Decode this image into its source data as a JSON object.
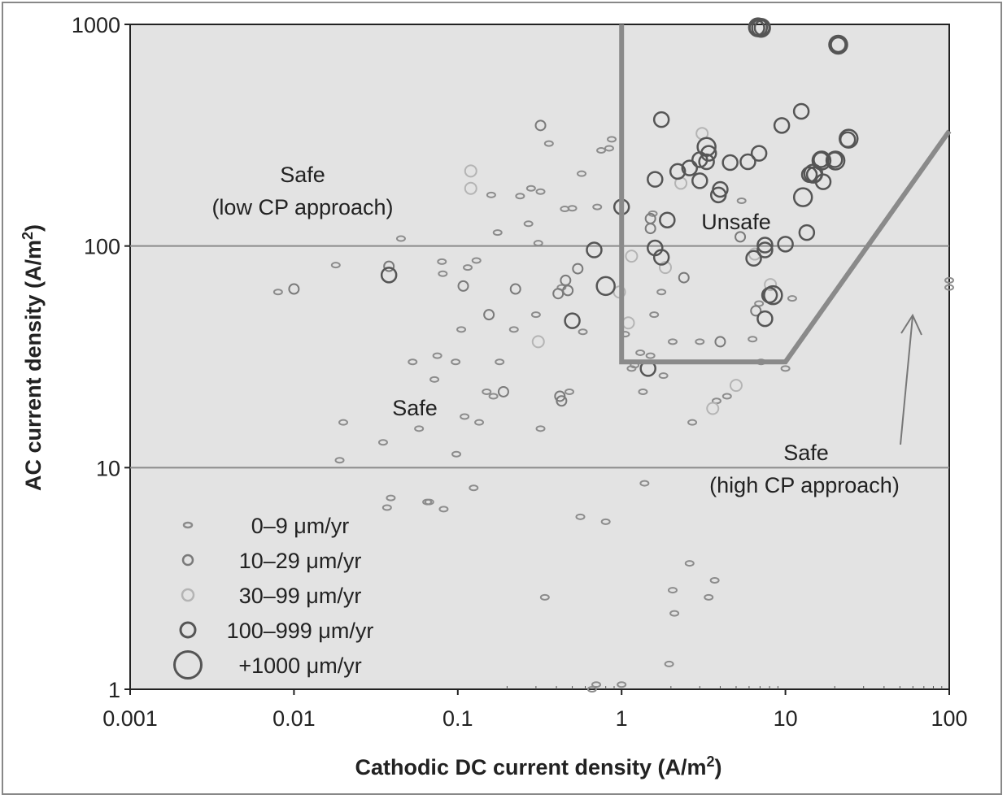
{
  "chart_data": {
    "type": "scatter",
    "xlabel": "Cathodic DC current density (A/m",
    "xlabel_sup": "2",
    "xlabel_end": ")",
    "ylabel": "AC current density (A/m",
    "ylabel_sup": "2",
    "ylabel_end": ")",
    "x_scale": "log",
    "y_scale": "log",
    "xlim": [
      0.001,
      100
    ],
    "ylim": [
      1,
      1000
    ],
    "x_ticks": [
      "0.001",
      "0.01",
      "0.1",
      "1",
      "10",
      "100"
    ],
    "y_ticks": [
      "1",
      "10",
      "100",
      "1000"
    ],
    "gridlines_y": [
      10,
      100
    ],
    "background": "#e3e3e3",
    "region_labels": {
      "safe_low_line1": "Safe",
      "safe_low_line2": "(low CP approach)",
      "safe_mid": "Safe",
      "unsafe": "Unsafe",
      "safe_high_line1": "Safe",
      "safe_high_line2": "(high CP approach)"
    },
    "boundary_line": [
      [
        1,
        1000
      ],
      [
        1,
        30
      ],
      [
        10,
        30
      ],
      [
        100,
        330
      ]
    ],
    "legend": [
      {
        "name": "0–9 μm/yr",
        "color": "#8c8c8c",
        "size": "xs"
      },
      {
        "name": "10–29 μm/yr",
        "color": "#7a7a7a",
        "size": "s"
      },
      {
        "name": "30–99 μm/yr",
        "color": "#b4b4b4",
        "size": "m"
      },
      {
        "name": "100–999 μm/yr",
        "color": "#555555",
        "size": "l"
      },
      {
        "name": "+1000 μm/yr",
        "color": "#555555",
        "size": "xl"
      }
    ],
    "series": [
      {
        "name": "0–9 μm/yr",
        "points": [
          [
            0.008,
            62
          ],
          [
            0.018,
            82
          ],
          [
            0.019,
            10.8
          ],
          [
            0.02,
            16
          ],
          [
            0.035,
            13
          ],
          [
            0.037,
            6.6
          ],
          [
            0.039,
            7.3
          ],
          [
            0.045,
            108
          ],
          [
            0.053,
            30
          ],
          [
            0.058,
            15
          ],
          [
            0.065,
            7
          ],
          [
            0.067,
            7
          ],
          [
            0.072,
            25
          ],
          [
            0.075,
            32
          ],
          [
            0.08,
            85
          ],
          [
            0.081,
            75
          ],
          [
            0.082,
            6.5
          ],
          [
            0.097,
            30
          ],
          [
            0.098,
            11.5
          ],
          [
            0.105,
            42
          ],
          [
            0.11,
            17
          ],
          [
            0.115,
            80
          ],
          [
            0.125,
            8.1
          ],
          [
            0.13,
            86
          ],
          [
            0.135,
            16
          ],
          [
            0.15,
            22
          ],
          [
            0.16,
            170
          ],
          [
            0.165,
            21
          ],
          [
            0.175,
            115
          ],
          [
            0.18,
            30
          ],
          [
            0.22,
            42
          ],
          [
            0.24,
            168
          ],
          [
            0.27,
            126
          ],
          [
            0.28,
            182
          ],
          [
            0.3,
            49
          ],
          [
            0.31,
            103
          ],
          [
            0.32,
            15
          ],
          [
            0.32,
            176
          ],
          [
            0.34,
            2.6
          ],
          [
            0.36,
            290
          ],
          [
            0.43,
            65
          ],
          [
            0.45,
            147
          ],
          [
            0.48,
            22
          ],
          [
            0.5,
            148
          ],
          [
            0.56,
            6
          ],
          [
            0.57,
            212
          ],
          [
            0.58,
            41
          ],
          [
            0.66,
            1
          ],
          [
            0.7,
            1.05
          ],
          [
            0.71,
            150
          ],
          [
            0.75,
            270
          ],
          [
            0.8,
            5.7
          ],
          [
            0.84,
            276
          ],
          [
            0.87,
            303
          ],
          [
            1.0,
            1.05
          ],
          [
            1.05,
            40
          ],
          [
            1.15,
            28
          ],
          [
            1.2,
            29
          ],
          [
            1.3,
            33
          ],
          [
            1.35,
            22
          ],
          [
            1.38,
            8.5
          ],
          [
            1.5,
            32
          ],
          [
            1.55,
            140
          ],
          [
            1.58,
            49
          ],
          [
            1.75,
            62
          ],
          [
            1.8,
            26
          ],
          [
            1.95,
            1.3
          ],
          [
            2.05,
            37
          ],
          [
            2.05,
            2.8
          ],
          [
            2.1,
            2.2
          ],
          [
            2.6,
            3.7
          ],
          [
            2.7,
            16
          ],
          [
            3.0,
            37
          ],
          [
            3.4,
            2.6
          ],
          [
            3.7,
            3.1
          ],
          [
            3.8,
            20
          ],
          [
            4.4,
            21
          ],
          [
            5.4,
            160
          ],
          [
            6.3,
            38
          ],
          [
            6.9,
            55
          ],
          [
            7.1,
            30
          ],
          [
            10.0,
            28
          ],
          [
            11,
            58
          ],
          [
            100,
            70
          ],
          [
            100,
            65
          ]
        ]
      },
      {
        "name": "10–29 μm/yr",
        "points": [
          [
            0.01,
            64
          ],
          [
            0.038,
            81
          ],
          [
            0.108,
            66
          ],
          [
            0.155,
            49
          ],
          [
            0.19,
            22
          ],
          [
            0.225,
            64
          ],
          [
            0.32,
            350
          ],
          [
            0.41,
            61
          ],
          [
            0.42,
            21
          ],
          [
            0.43,
            20
          ],
          [
            0.455,
            70
          ],
          [
            0.47,
            63
          ],
          [
            0.54,
            79
          ],
          [
            1.5,
            133
          ],
          [
            1.5,
            120
          ],
          [
            2.4,
            72
          ],
          [
            4.0,
            37
          ],
          [
            5.3,
            110
          ],
          [
            6.6,
            51
          ]
        ]
      },
      {
        "name": "30–99 μm/yr",
        "points": [
          [
            0.12,
            218
          ],
          [
            0.12,
            182
          ],
          [
            0.31,
            37
          ],
          [
            0.97,
            62
          ],
          [
            1.1,
            45
          ],
          [
            1.15,
            90
          ],
          [
            1.85,
            80
          ],
          [
            2.3,
            192
          ],
          [
            3.1,
            322
          ],
          [
            3.6,
            18.5
          ],
          [
            5.0,
            23.5
          ],
          [
            6.5,
            92
          ],
          [
            8.1,
            67
          ]
        ]
      },
      {
        "name": "100–999 μm/yr",
        "points": [
          [
            0.038,
            74
          ],
          [
            0.5,
            46
          ],
          [
            0.68,
            96
          ],
          [
            1.0,
            150
          ],
          [
            1.45,
            28
          ],
          [
            1.6,
            98
          ],
          [
            1.6,
            200
          ],
          [
            1.75,
            89
          ],
          [
            1.75,
            372
          ],
          [
            1.9,
            131
          ],
          [
            2.2,
            217
          ],
          [
            2.6,
            225
          ],
          [
            3.0,
            245
          ],
          [
            3.0,
            197
          ],
          [
            3.3,
            240
          ],
          [
            3.4,
            262
          ],
          [
            3.9,
            170
          ],
          [
            4.0,
            180
          ],
          [
            4.6,
            238
          ],
          [
            5.9,
            240
          ],
          [
            6.4,
            88
          ],
          [
            6.9,
            262
          ],
          [
            7.5,
            101
          ],
          [
            7.5,
            96
          ],
          [
            7.5,
            47
          ],
          [
            8.0,
            60
          ],
          [
            9.5,
            350
          ],
          [
            10,
            102
          ],
          [
            12.5,
            405
          ],
          [
            13.5,
            115
          ],
          [
            14,
            210
          ],
          [
            15,
            210
          ],
          [
            16.5,
            245
          ],
          [
            17,
            195
          ],
          [
            20,
            245
          ],
          [
            24,
            302
          ],
          [
            6.7,
            965
          ],
          [
            7.2,
            965
          ],
          [
            21,
            810
          ]
        ]
      },
      {
        "name": "+1000 μm/yr",
        "points": [
          [
            0.8,
            66
          ],
          [
            3.3,
            280
          ],
          [
            6.8,
            970
          ],
          [
            8.4,
            60
          ],
          [
            12.8,
            166
          ],
          [
            14.8,
            212
          ],
          [
            16.6,
            243
          ],
          [
            20.2,
            243
          ],
          [
            24.3,
            305
          ],
          [
            7.1,
            965
          ],
          [
            21,
            810
          ]
        ]
      }
    ]
  }
}
